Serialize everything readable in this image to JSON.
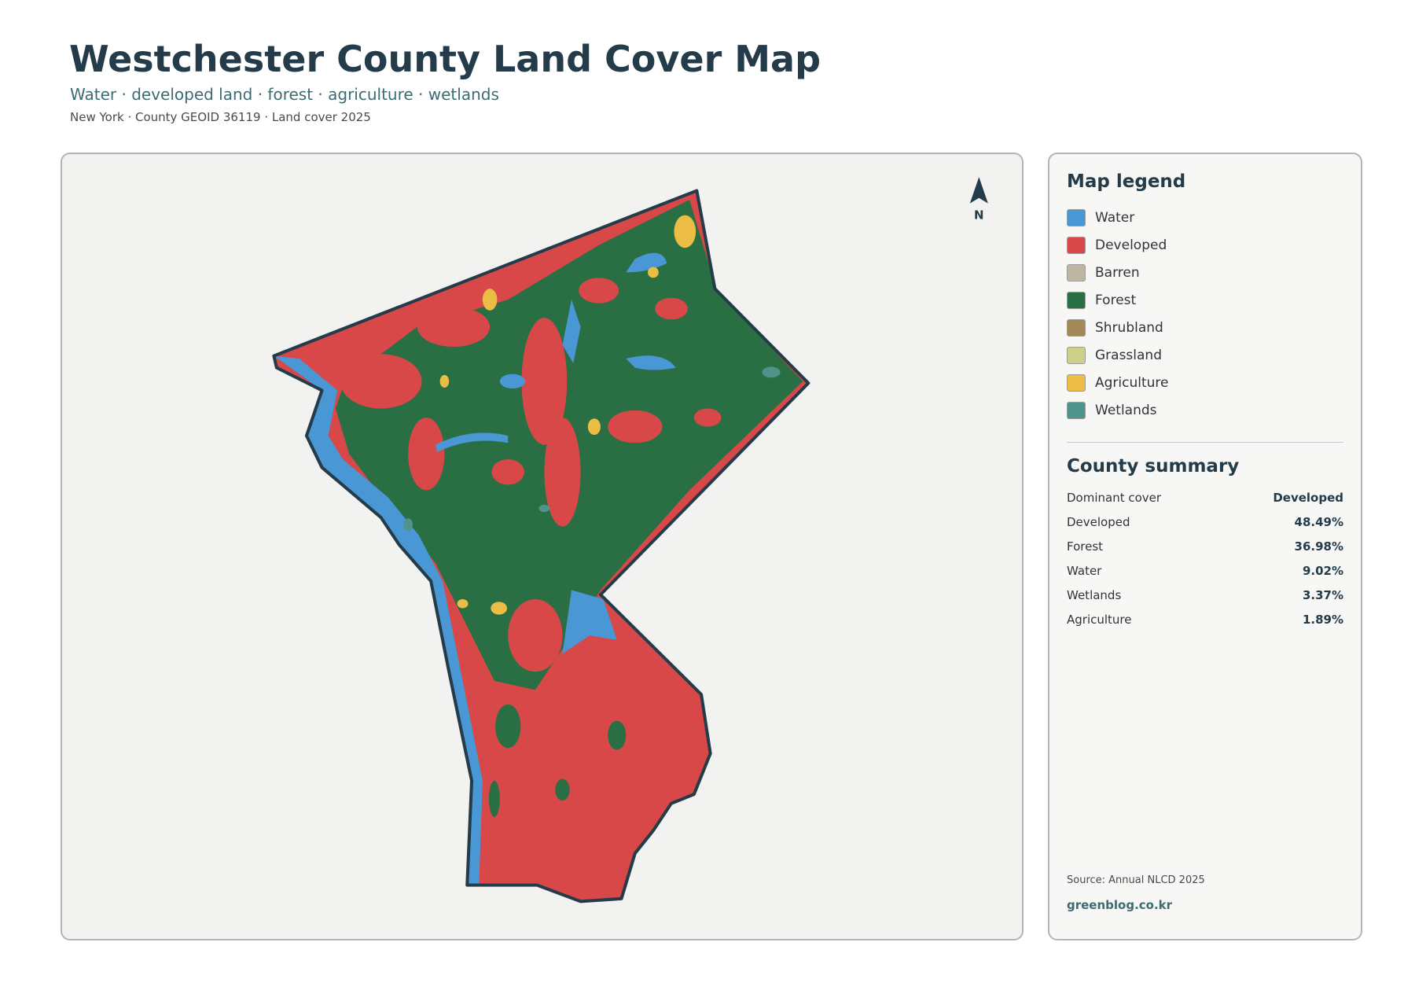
{
  "header": {
    "title": "Westchester County Land Cover Map",
    "subtitle": "Water · developed land · forest · agriculture · wetlands",
    "meta": "New York · County GEOID 36119 · Land cover 2025"
  },
  "map": {
    "north_label": "N"
  },
  "legend": {
    "title": "Map legend",
    "items": [
      {
        "label": "Water",
        "color": "#4a97d6"
      },
      {
        "label": "Developed",
        "color": "#d94848"
      },
      {
        "label": "Barren",
        "color": "#bfb5a3"
      },
      {
        "label": "Forest",
        "color": "#2a6e44"
      },
      {
        "label": "Shrubland",
        "color": "#a38955"
      },
      {
        "label": "Grassland",
        "color": "#cdd08a"
      },
      {
        "label": "Agriculture",
        "color": "#ecbd45"
      },
      {
        "label": "Wetlands",
        "color": "#4f938a"
      }
    ]
  },
  "summary": {
    "title": "County summary",
    "rows": [
      [
        "Dominant cover",
        "Developed"
      ],
      [
        "Developed",
        "48.49%"
      ],
      [
        "Forest",
        "36.98%"
      ],
      [
        "Water",
        "9.02%"
      ],
      [
        "Wetlands",
        "3.37%"
      ],
      [
        "Agriculture",
        "1.89%"
      ]
    ]
  },
  "footer": {
    "source": "Source: Annual NLCD 2025",
    "site": "greenblog.co.kr"
  }
}
